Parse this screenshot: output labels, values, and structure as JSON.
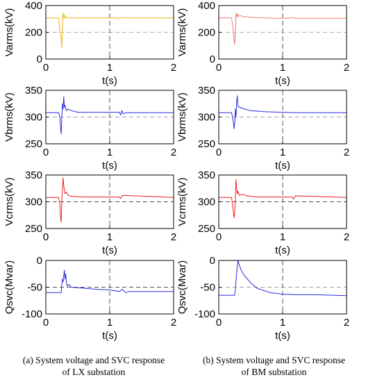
{
  "captions": [
    {
      "line1": "(a) System voltage and SVC response",
      "line2": "of LX substation"
    },
    {
      "line1": "(b) System voltage and SVC response",
      "line2": "of BM substation"
    }
  ],
  "chart_data": [
    {
      "id": "a1",
      "type": "line",
      "xlabel": "t(s)",
      "ylabel": "Varms(kV)",
      "xlim": [
        0,
        2
      ],
      "ylim": [
        0,
        400
      ],
      "xticks": [
        0,
        1,
        2
      ],
      "yticks": [
        0,
        200,
        400
      ],
      "series_color": "#f2b10a",
      "ref_lines": [
        {
          "axis": "y",
          "value": 200,
          "color": "#b0b0b0"
        },
        {
          "axis": "x",
          "value": 1,
          "color": "#707070"
        }
      ],
      "series": [
        {
          "x": [
            0,
            0.2,
            0.22,
            0.24,
            0.25,
            0.26,
            0.27,
            0.28,
            0.29,
            0.3,
            0.32,
            0.35,
            0.4,
            1.1,
            1.13,
            1.16,
            1.2,
            2
          ],
          "y": [
            308,
            308,
            195,
            160,
            85,
            230,
            345,
            310,
            330,
            305,
            312,
            308,
            308,
            308,
            300,
            312,
            308,
            308
          ]
        }
      ]
    },
    {
      "id": "b1",
      "type": "line",
      "xlabel": "t(s)",
      "ylabel": "Varms(kV)",
      "xlim": [
        0,
        2
      ],
      "ylim": [
        0,
        400
      ],
      "xticks": [
        0,
        1,
        2
      ],
      "yticks": [
        0,
        200,
        400
      ],
      "series_color": "#f07a6e",
      "ref_lines": [
        {
          "axis": "y",
          "value": 200,
          "color": "#b0b0b0"
        },
        {
          "axis": "x",
          "value": 1,
          "color": "#707070"
        }
      ],
      "series": [
        {
          "x": [
            0,
            0.2,
            0.22,
            0.24,
            0.25,
            0.26,
            0.27,
            0.28,
            0.29,
            0.3,
            0.33,
            0.38,
            0.5,
            0.8,
            1.1,
            1.15,
            1.2,
            2
          ],
          "y": [
            308,
            308,
            240,
            140,
            110,
            200,
            340,
            315,
            340,
            320,
            325,
            318,
            312,
            306,
            305,
            310,
            305,
            305
          ]
        }
      ]
    },
    {
      "id": "a2",
      "type": "line",
      "xlabel": "t(s)",
      "ylabel": "Vbrms(kV)",
      "xlim": [
        0,
        2
      ],
      "ylim": [
        250,
        350
      ],
      "xticks": [
        0,
        1,
        2
      ],
      "yticks": [
        250,
        300,
        350
      ],
      "series_color": "#2a2ae0",
      "ref_lines": [
        {
          "axis": "y",
          "value": 300,
          "color": "#a0a0a0"
        },
        {
          "axis": "x",
          "value": 1,
          "color": "#707070"
        }
      ],
      "series": [
        {
          "x": [
            0,
            0.2,
            0.22,
            0.23,
            0.24,
            0.25,
            0.26,
            0.27,
            0.28,
            0.29,
            0.3,
            0.32,
            0.35,
            0.4,
            0.5,
            1.15,
            1.17,
            1.19,
            1.21,
            1.25,
            2
          ],
          "y": [
            308,
            308,
            300,
            280,
            268,
            300,
            325,
            315,
            338,
            318,
            322,
            312,
            315,
            312,
            309,
            309,
            304,
            312,
            306,
            308,
            308
          ]
        }
      ]
    },
    {
      "id": "b2",
      "type": "line",
      "xlabel": "t(s)",
      "ylabel": "Vbrms(kV)",
      "xlim": [
        0,
        2
      ],
      "ylim": [
        250,
        350
      ],
      "xticks": [
        0,
        1,
        2
      ],
      "yticks": [
        250,
        300,
        350
      ],
      "series_color": "#2a2ae0",
      "ref_lines": [
        {
          "axis": "y",
          "value": 300,
          "color": "#a0a0a0"
        },
        {
          "axis": "x",
          "value": 1,
          "color": "#707070"
        }
      ],
      "series": [
        {
          "x": [
            0,
            0.2,
            0.22,
            0.24,
            0.25,
            0.26,
            0.27,
            0.28,
            0.29,
            0.3,
            0.33,
            0.4,
            0.5,
            0.7,
            1.0,
            1.2,
            1.5,
            2
          ],
          "y": [
            308,
            308,
            298,
            278,
            290,
            315,
            300,
            330,
            340,
            320,
            318,
            315,
            312,
            310,
            309,
            308,
            308,
            308
          ]
        }
      ]
    },
    {
      "id": "a3",
      "type": "line",
      "xlabel": "t(s)",
      "ylabel": "Vcrms(kV)",
      "xlim": [
        0,
        2
      ],
      "ylim": [
        250,
        350
      ],
      "xticks": [
        0,
        1,
        2
      ],
      "yticks": [
        250,
        300,
        350
      ],
      "series_color": "#ee1c1c",
      "ref_lines": [
        {
          "axis": "y",
          "value": 300,
          "color": "#505050"
        },
        {
          "axis": "x",
          "value": 1,
          "color": "#707070"
        }
      ],
      "series": [
        {
          "x": [
            0,
            0.2,
            0.22,
            0.23,
            0.24,
            0.25,
            0.26,
            0.27,
            0.28,
            0.29,
            0.3,
            0.32,
            0.35,
            0.4,
            0.6,
            1.15,
            1.17,
            1.2,
            2
          ],
          "y": [
            308,
            308,
            295,
            270,
            262,
            300,
            322,
            345,
            330,
            322,
            315,
            318,
            312,
            310,
            309,
            309,
            306,
            312,
            308
          ]
        }
      ]
    },
    {
      "id": "b3",
      "type": "line",
      "xlabel": "t(s)",
      "ylabel": "Vcrms(kV)",
      "xlim": [
        0,
        2
      ],
      "ylim": [
        250,
        350
      ],
      "xticks": [
        0,
        1,
        2
      ],
      "yticks": [
        250,
        300,
        350
      ],
      "series_color": "#ee1c1c",
      "ref_lines": [
        {
          "axis": "y",
          "value": 300,
          "color": "#505050"
        },
        {
          "axis": "x",
          "value": 1,
          "color": "#707070"
        }
      ],
      "series": [
        {
          "x": [
            0,
            0.2,
            0.22,
            0.24,
            0.25,
            0.26,
            0.27,
            0.28,
            0.29,
            0.3,
            0.32,
            0.36,
            0.45,
            0.6,
            1.15,
            1.17,
            1.2,
            2
          ],
          "y": [
            308,
            308,
            290,
            270,
            280,
            305,
            342,
            325,
            315,
            320,
            312,
            314,
            311,
            309,
            309,
            305,
            311,
            308
          ]
        }
      ]
    },
    {
      "id": "a4",
      "type": "line",
      "xlabel": "t(s)",
      "ylabel": "Qsvc(Mvar)",
      "xlim": [
        0,
        2
      ],
      "ylim": [
        -100,
        0
      ],
      "xticks": [
        0,
        1,
        2
      ],
      "yticks": [
        -100,
        -50,
        0
      ],
      "series_color": "#2a2ae0",
      "ref_lines": [
        {
          "axis": "y",
          "value": -50,
          "color": "#505050"
        },
        {
          "axis": "x",
          "value": 1,
          "color": "#707070"
        }
      ],
      "series": [
        {
          "x": [
            0,
            0.24,
            0.25,
            0.26,
            0.27,
            0.28,
            0.29,
            0.3,
            0.31,
            0.33,
            0.36,
            0.4,
            0.6,
            0.8,
            1.0,
            1.15,
            1.2,
            1.25,
            1.3,
            2
          ],
          "y": [
            -60,
            -60,
            -45,
            -35,
            -40,
            -28,
            -18,
            -35,
            -25,
            -48,
            -45,
            -50,
            -52,
            -54,
            -55,
            -58,
            -54,
            -60,
            -58,
            -58
          ]
        }
      ]
    },
    {
      "id": "b4",
      "type": "line",
      "xlabel": "t(s)",
      "ylabel": "Qsvc(Mvar)",
      "xlim": [
        0,
        2
      ],
      "ylim": [
        -100,
        0
      ],
      "xticks": [
        0,
        1,
        2
      ],
      "yticks": [
        -100,
        -50,
        0
      ],
      "series_color": "#2a2ae0",
      "ref_lines": [
        {
          "axis": "y",
          "value": 0,
          "color": "#505050"
        },
        {
          "axis": "y",
          "value": -50,
          "color": "#a0a0a0"
        },
        {
          "axis": "x",
          "value": 1,
          "color": "#707070"
        }
      ],
      "series": [
        {
          "x": [
            0,
            0.25,
            0.27,
            0.29,
            0.3,
            0.32,
            0.35,
            0.4,
            0.5,
            0.6,
            0.8,
            1.0,
            1.2,
            1.5,
            1.8,
            2
          ],
          "y": [
            -65,
            -65,
            -40,
            -10,
            0,
            -8,
            -18,
            -28,
            -42,
            -52,
            -60,
            -63,
            -64,
            -64,
            -65,
            -66
          ]
        }
      ]
    }
  ]
}
